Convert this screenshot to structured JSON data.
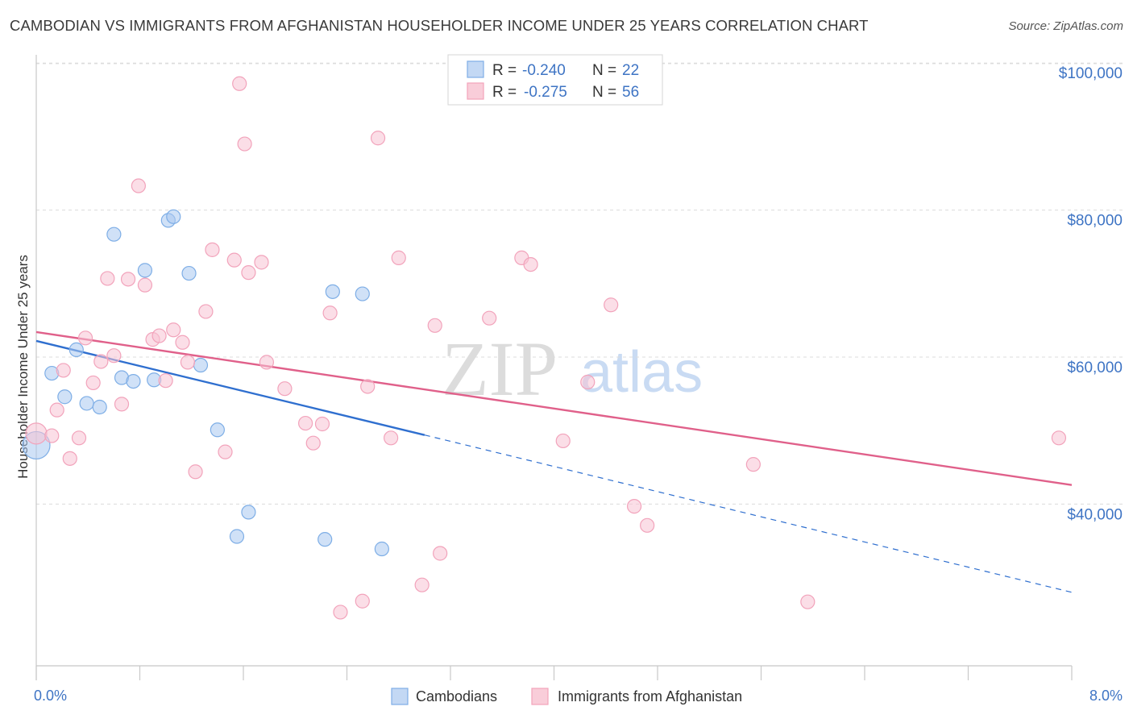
{
  "title": "CAMBODIAN VS IMMIGRANTS FROM AFGHANISTAN HOUSEHOLDER INCOME UNDER 25 YEARS CORRELATION CHART",
  "source": "Source: ZipAtlas.com",
  "watermark": {
    "part1": "ZIP",
    "part2": "atlas"
  },
  "colors": {
    "blue": "#7eaee6",
    "blue_line": "#2f6fcf",
    "pink": "#f2a3bb",
    "pink_line": "#e0608a",
    "tick_label": "#3e74c4"
  },
  "legend_top": {
    "rows": [
      {
        "r_label": "R =",
        "r_value": "-0.240",
        "n_label": "N =",
        "n_value": "22"
      },
      {
        "r_label": "R =",
        "r_value": "-0.275",
        "n_label": "N =",
        "n_value": "56"
      }
    ]
  },
  "legend_bottom": {
    "items": [
      "Cambodians",
      "Immigrants from Afghanistan"
    ]
  },
  "chart_data": {
    "type": "scatter",
    "ylabel": "Householder Income Under 25 years",
    "xlim": [
      0,
      8
    ],
    "ylim": [
      18000,
      102000
    ],
    "x_tick_labels": [
      "0.0%",
      "8.0%"
    ],
    "y_ticks": [
      40000,
      60000,
      80000,
      100000
    ],
    "y_tick_labels": [
      "$40,000",
      "$60,000",
      "$80,000",
      "$100,000"
    ],
    "grid": true,
    "series": [
      {
        "name": "Cambodians",
        "color": "#7eaee6",
        "trend": {
          "x": [
            0.0,
            3.0
          ],
          "y": [
            62200,
            49400
          ],
          "dashed_to": [
            8.0,
            28000
          ]
        },
        "points": [
          [
            0.0,
            48000
          ],
          [
            0.12,
            57800
          ],
          [
            0.22,
            54600
          ],
          [
            0.31,
            61000
          ],
          [
            0.39,
            53700
          ],
          [
            0.49,
            53200
          ],
          [
            0.6,
            76700
          ],
          [
            0.66,
            57200
          ],
          [
            0.75,
            56700
          ],
          [
            0.84,
            71800
          ],
          [
            0.91,
            56900
          ],
          [
            1.02,
            78600
          ],
          [
            1.06,
            79100
          ],
          [
            1.18,
            71400
          ],
          [
            1.27,
            58900
          ],
          [
            1.4,
            50100
          ],
          [
            1.55,
            35600
          ],
          [
            1.64,
            38900
          ],
          [
            2.23,
            35200
          ],
          [
            2.29,
            68900
          ],
          [
            2.52,
            68600
          ],
          [
            2.67,
            33900
          ]
        ]
      },
      {
        "name": "Immigrants from Afghanistan",
        "color": "#f2a3bb",
        "trend": {
          "x": [
            0.0,
            8.0
          ],
          "y": [
            63400,
            42600
          ]
        },
        "points": [
          [
            0.0,
            49600
          ],
          [
            0.12,
            49300
          ],
          [
            0.16,
            52800
          ],
          [
            0.21,
            58200
          ],
          [
            0.26,
            46200
          ],
          [
            0.33,
            49000
          ],
          [
            0.38,
            62600
          ],
          [
            0.44,
            56500
          ],
          [
            0.5,
            59400
          ],
          [
            0.55,
            70700
          ],
          [
            0.6,
            60200
          ],
          [
            0.66,
            53600
          ],
          [
            0.71,
            70600
          ],
          [
            0.79,
            83300
          ],
          [
            0.84,
            69800
          ],
          [
            0.9,
            62400
          ],
          [
            0.95,
            62900
          ],
          [
            1.0,
            56800
          ],
          [
            1.06,
            63700
          ],
          [
            1.13,
            62000
          ],
          [
            1.17,
            59300
          ],
          [
            1.23,
            44400
          ],
          [
            1.31,
            66200
          ],
          [
            1.36,
            74600
          ],
          [
            1.46,
            47100
          ],
          [
            1.53,
            73200
          ],
          [
            1.57,
            97200
          ],
          [
            1.61,
            89000
          ],
          [
            1.64,
            71500
          ],
          [
            1.74,
            72900
          ],
          [
            1.78,
            59300
          ],
          [
            1.92,
            55700
          ],
          [
            2.08,
            51000
          ],
          [
            2.14,
            48300
          ],
          [
            2.21,
            50900
          ],
          [
            2.27,
            66000
          ],
          [
            2.35,
            25300
          ],
          [
            2.52,
            26800
          ],
          [
            2.56,
            56000
          ],
          [
            2.64,
            89800
          ],
          [
            2.74,
            49000
          ],
          [
            2.8,
            73500
          ],
          [
            2.98,
            29000
          ],
          [
            3.08,
            64300
          ],
          [
            3.12,
            33300
          ],
          [
            3.5,
            65300
          ],
          [
            3.75,
            73500
          ],
          [
            3.82,
            72600
          ],
          [
            4.07,
            48600
          ],
          [
            4.26,
            56600
          ],
          [
            4.44,
            67100
          ],
          [
            4.62,
            39700
          ],
          [
            4.72,
            37100
          ],
          [
            5.54,
            45400
          ],
          [
            5.96,
            26700
          ],
          [
            7.9,
            49000
          ]
        ]
      }
    ]
  }
}
